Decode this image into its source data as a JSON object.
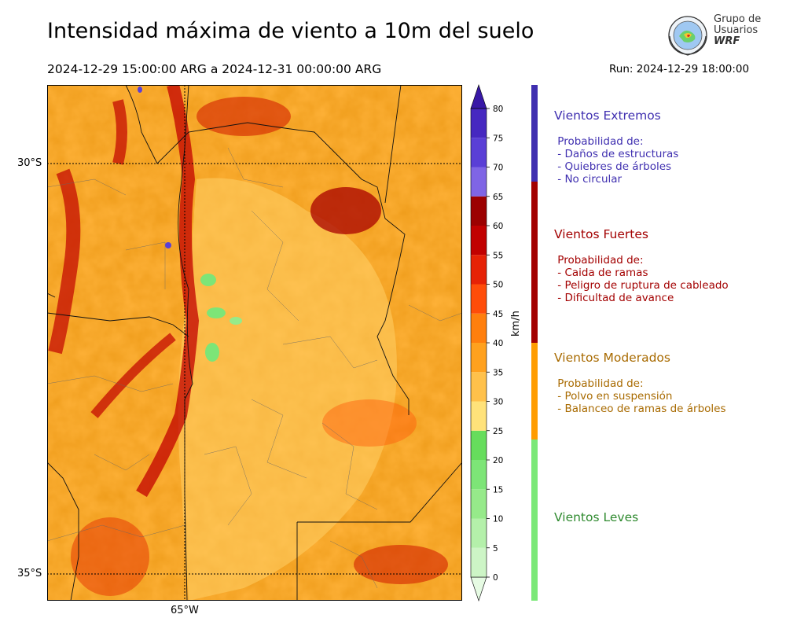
{
  "header": {
    "title": "Intensidad máxima de viento a 10m del suelo",
    "period": "2024-12-29 15:00:00 ARG  a  2024-12-31 00:00:00 ARG",
    "run": "Run: 2024-12-29 18:00:00"
  },
  "logo": {
    "line1": "Grupo de",
    "line2": "Usuarios",
    "line3": "WRF"
  },
  "map_axes": {
    "lat_labels": [
      "30°S",
      "35°S"
    ],
    "lon_labels": [
      "65°W"
    ]
  },
  "colorbar": {
    "unit": "km/h",
    "ticks": [
      "0",
      "5",
      "10",
      "15",
      "20",
      "25",
      "30",
      "35",
      "40",
      "45",
      "50",
      "55",
      "60",
      "65",
      "70",
      "75",
      "80"
    ],
    "colors": [
      "#e6fbe3",
      "#cdf5c6",
      "#b4f0aa",
      "#96ea8a",
      "#7de577",
      "#66dd5c",
      "#ffe27a",
      "#ffc14b",
      "#ffa11e",
      "#ff7f0e",
      "#ff4d0a",
      "#e62206",
      "#c10000",
      "#9c0000",
      "#7f65e5",
      "#5a3fd6",
      "#4628c0",
      "#3818a6"
    ]
  },
  "categories": [
    {
      "title": "Vientos Extremos",
      "color": "#3f2fb0",
      "body": " Probabilidad de:\n - Daños de estructuras\n - Quiebres de árboles\n - No circular"
    },
    {
      "title": "Vientos Fuertes",
      "color": "#a30000",
      "body": " Probabilidad de:\n - Caida de ramas\n - Peligro de ruptura de cableado\n - Dificultad de avance"
    },
    {
      "title": "Vientos Moderados",
      "color": "#a86a00",
      "body": " Probabilidad de:\n - Polvo en suspensión\n - Balanceo de ramas de árboles"
    },
    {
      "title": "Vientos Leves",
      "color": "#2f8a2f",
      "body": ""
    }
  ],
  "category_bar": [
    {
      "from": 65,
      "to": 80,
      "color": "#3f2fb0"
    },
    {
      "from": 40,
      "to": 65,
      "color": "#a30000"
    },
    {
      "from": 25,
      "to": 40,
      "color": "#ff9c00"
    },
    {
      "from": 0,
      "to": 25,
      "color": "#7be878"
    }
  ]
}
